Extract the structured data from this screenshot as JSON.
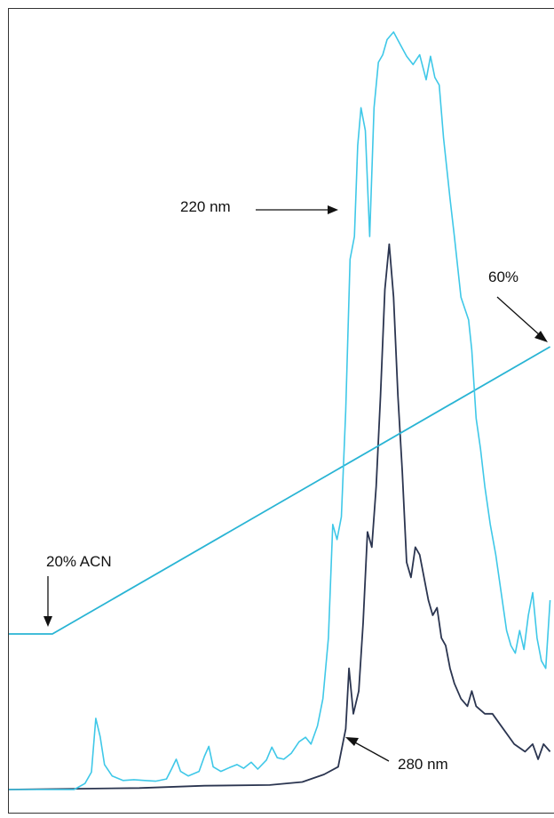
{
  "chart_data": {
    "type": "line",
    "title": "",
    "xlabel": "",
    "ylabel": "",
    "grid": false,
    "annotations": {
      "trace_220": "220 nm",
      "trace_280": "280 nm",
      "gradient_start": "20% ACN",
      "gradient_end": "60%"
    },
    "colors": {
      "trace_220": "#3fc8e8",
      "trace_280": "#2b3550",
      "gradient": "#29b4d4",
      "arrow": "#111111"
    },
    "series": [
      {
        "key": "trace_220",
        "values": [
          [
            0.0,
            0.0
          ],
          [
            6.0,
            0.0
          ],
          [
            7.0,
            0.8
          ],
          [
            7.6,
            2.3
          ],
          [
            8.0,
            9.4
          ],
          [
            8.4,
            7.0
          ],
          [
            8.8,
            3.3
          ],
          [
            9.5,
            1.8
          ],
          [
            10.5,
            1.2
          ],
          [
            11.5,
            1.3
          ],
          [
            12.5,
            1.2
          ],
          [
            13.5,
            1.1
          ],
          [
            14.5,
            1.4
          ],
          [
            15.0,
            2.8
          ],
          [
            15.4,
            4.0
          ],
          [
            15.8,
            2.4
          ],
          [
            16.5,
            1.8
          ],
          [
            17.5,
            2.4
          ],
          [
            18.0,
            4.4
          ],
          [
            18.4,
            5.7
          ],
          [
            18.8,
            3.0
          ],
          [
            19.5,
            2.4
          ],
          [
            20.3,
            2.9
          ],
          [
            21.0,
            3.3
          ],
          [
            21.6,
            2.8
          ],
          [
            22.3,
            3.6
          ],
          [
            22.9,
            2.7
          ],
          [
            23.7,
            3.9
          ],
          [
            24.2,
            5.6
          ],
          [
            24.7,
            4.2
          ],
          [
            25.3,
            4.0
          ],
          [
            26.0,
            4.8
          ],
          [
            26.7,
            6.3
          ],
          [
            27.3,
            6.9
          ],
          [
            27.8,
            6.0
          ],
          [
            28.4,
            8.4
          ],
          [
            28.9,
            12.0
          ],
          [
            29.4,
            20.0
          ],
          [
            29.8,
            35.0
          ],
          [
            30.2,
            33.0
          ],
          [
            30.6,
            36.0
          ],
          [
            31.0,
            50.0
          ],
          [
            31.4,
            70.0
          ],
          [
            31.8,
            73.0
          ],
          [
            32.1,
            85.0
          ],
          [
            32.4,
            90.0
          ],
          [
            32.8,
            87.0
          ],
          [
            33.2,
            73.0
          ],
          [
            33.6,
            90.0
          ],
          [
            34.0,
            96.0
          ],
          [
            34.4,
            97.0
          ],
          [
            34.8,
            99.0
          ],
          [
            35.4,
            100.0
          ],
          [
            36.0,
            98.4
          ],
          [
            36.6,
            96.8
          ],
          [
            37.2,
            95.7
          ],
          [
            37.8,
            97.0
          ],
          [
            38.4,
            93.7
          ],
          [
            38.8,
            96.8
          ],
          [
            39.2,
            94.0
          ],
          [
            39.6,
            93.0
          ],
          [
            40.0,
            86.0
          ],
          [
            40.6,
            78.0
          ],
          [
            41.0,
            73.0
          ],
          [
            41.6,
            65.0
          ],
          [
            42.3,
            62.0
          ],
          [
            42.6,
            58.0
          ],
          [
            43.0,
            49.0
          ],
          [
            43.4,
            45.0
          ],
          [
            43.8,
            40.0
          ],
          [
            44.3,
            35.0
          ],
          [
            44.8,
            31.0
          ],
          [
            45.3,
            26.0
          ],
          [
            45.8,
            21.0
          ],
          [
            46.2,
            19.0
          ],
          [
            46.6,
            18.0
          ],
          [
            47.0,
            21.0
          ],
          [
            47.4,
            18.5
          ],
          [
            47.8,
            23.0
          ],
          [
            48.2,
            26.0
          ],
          [
            48.6,
            20.0
          ],
          [
            49.0,
            17.0
          ],
          [
            49.4,
            16.0
          ],
          [
            49.8,
            25.0
          ]
        ]
      },
      {
        "key": "trace_280",
        "values": [
          [
            0.0,
            0.0
          ],
          [
            12.0,
            0.2
          ],
          [
            18.0,
            0.5
          ],
          [
            24.0,
            0.6
          ],
          [
            27.0,
            1.0
          ],
          [
            29.0,
            2.0
          ],
          [
            30.3,
            3.0
          ],
          [
            31.0,
            8.0
          ],
          [
            31.3,
            16.0
          ],
          [
            31.7,
            10.0
          ],
          [
            32.2,
            13.0
          ],
          [
            32.6,
            22.0
          ],
          [
            33.0,
            34.0
          ],
          [
            33.4,
            32.0
          ],
          [
            33.8,
            40.0
          ],
          [
            34.2,
            52.0
          ],
          [
            34.6,
            66.0
          ],
          [
            35.0,
            72.0
          ],
          [
            35.4,
            65.0
          ],
          [
            35.8,
            52.0
          ],
          [
            36.2,
            42.0
          ],
          [
            36.6,
            30.0
          ],
          [
            37.0,
            28.0
          ],
          [
            37.4,
            32.0
          ],
          [
            37.8,
            31.0
          ],
          [
            38.2,
            28.0
          ],
          [
            38.6,
            25.0
          ],
          [
            39.0,
            23.0
          ],
          [
            39.4,
            24.0
          ],
          [
            39.8,
            20.0
          ],
          [
            40.2,
            19.0
          ],
          [
            40.6,
            16.0
          ],
          [
            41.0,
            14.0
          ],
          [
            41.6,
            12.0
          ],
          [
            42.2,
            11.0
          ],
          [
            42.6,
            13.0
          ],
          [
            43.0,
            11.0
          ],
          [
            43.8,
            10.0
          ],
          [
            44.5,
            10.0
          ],
          [
            45.5,
            8.0
          ],
          [
            46.5,
            6.0
          ],
          [
            47.5,
            5.0
          ],
          [
            48.2,
            6.0
          ],
          [
            48.7,
            4.0
          ],
          [
            49.2,
            6.0
          ],
          [
            49.8,
            5.0
          ]
        ]
      },
      {
        "key": "gradient",
        "values": [
          [
            0.0,
            20
          ],
          [
            4.0,
            20
          ],
          [
            49.8,
            60
          ]
        ]
      }
    ]
  }
}
